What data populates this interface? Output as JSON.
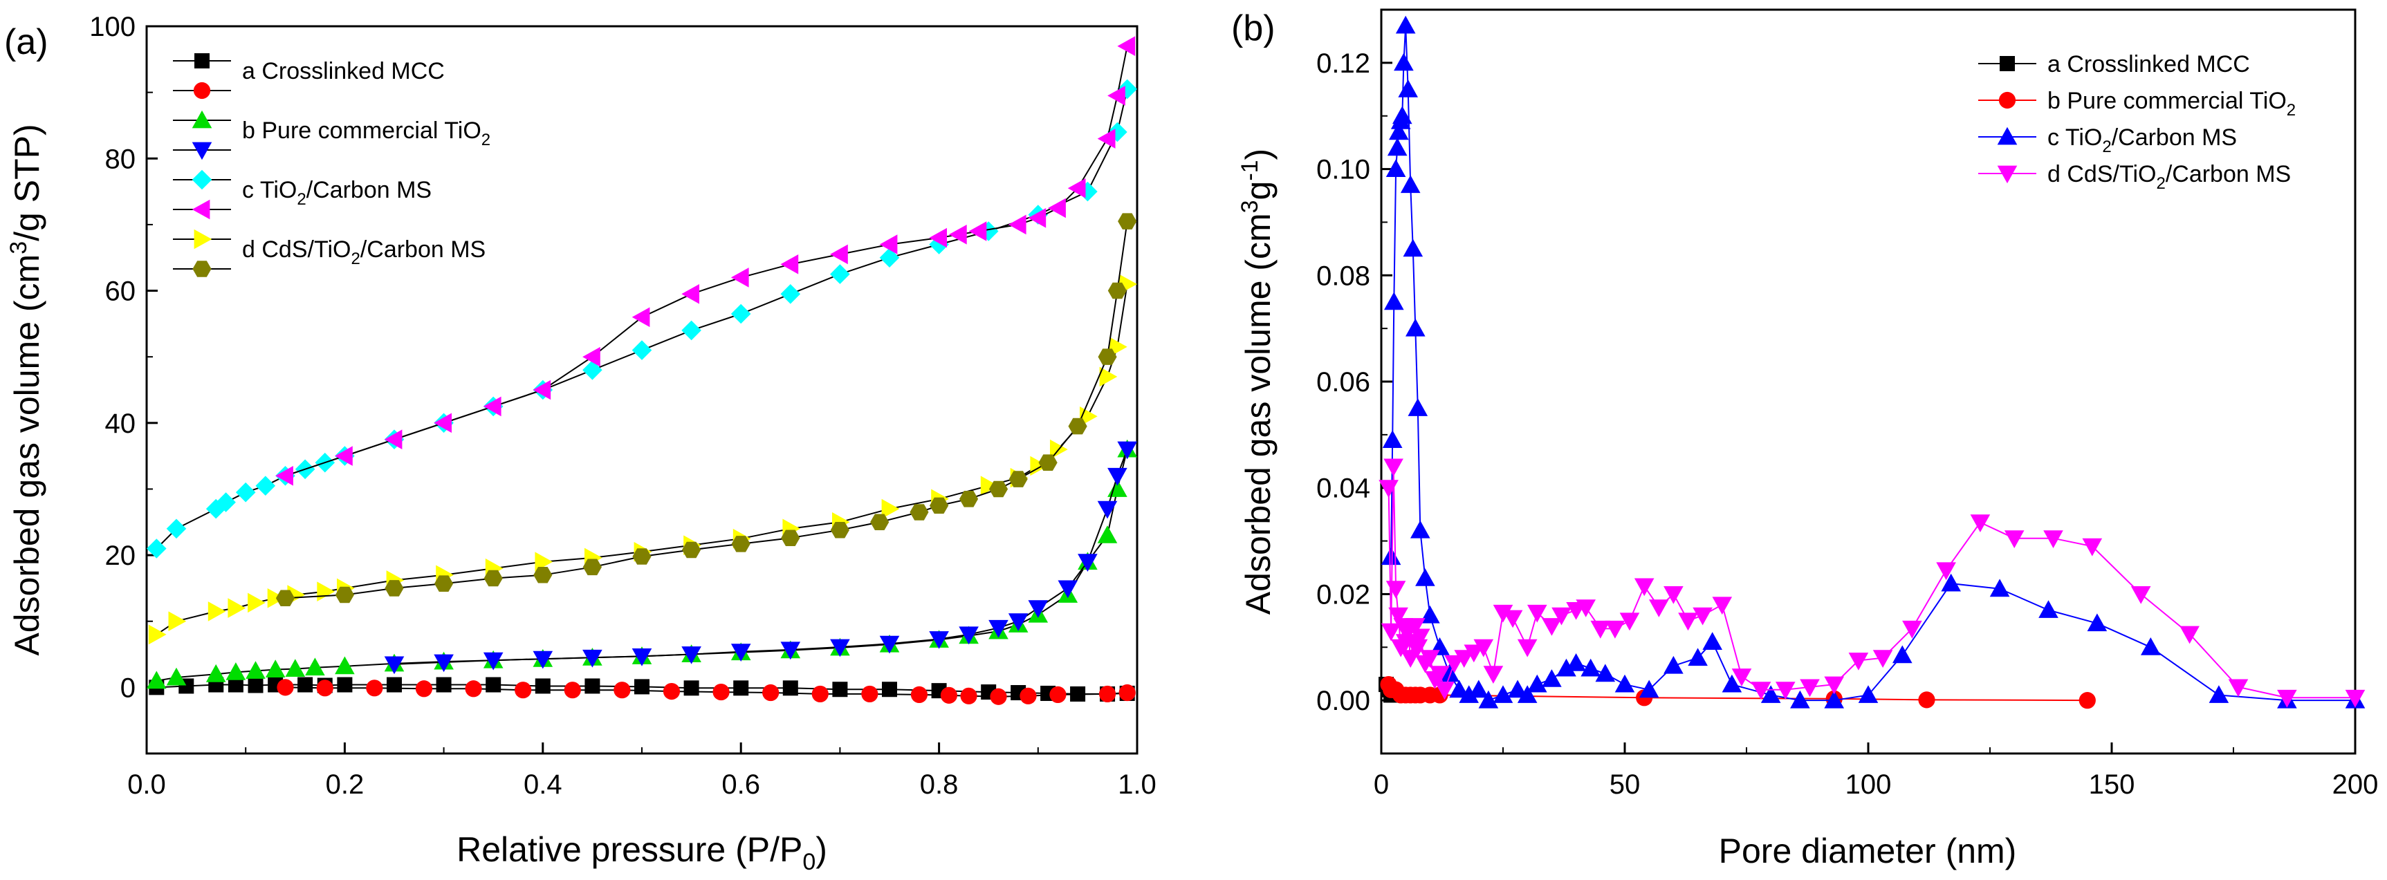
{
  "chart_data": [
    {
      "panel_label": "(a)",
      "type": "line",
      "xlabel": "Relative pressure (P/P",
      "xlabel_sub": "0",
      "xlabel_end": ")",
      "ylabel_pre": "Adsorbed gas volume (cm",
      "ylabel_sup": "3",
      "ylabel_end": "/g STP)",
      "xlim": [
        0,
        1.0
      ],
      "ylim": [
        -10,
        100
      ],
      "xticks": [
        "0.0",
        "0.2",
        "0.4",
        "0.6",
        "0.8",
        "1.0"
      ],
      "yticks": [
        "0",
        "20",
        "40",
        "60",
        "80",
        "100"
      ],
      "legend_position": "top-left",
      "legend": [
        {
          "text": "a Crosslinked MCC",
          "sub": "",
          "end": "",
          "marker": "square",
          "color": "#000000"
        },
        {
          "text": "",
          "sub": "",
          "end": "",
          "marker": "circle",
          "color": "#ff0000"
        },
        {
          "text": "b Pure commercial TiO",
          "sub": "2",
          "end": "",
          "marker": "triangle-up",
          "color": "#00dd00"
        },
        {
          "text": "",
          "sub": "",
          "end": "",
          "marker": "triangle-down",
          "color": "#0000ff"
        },
        {
          "text": "c TiO",
          "sub": "2",
          "end": "/Carbon MS",
          "marker": "diamond",
          "color": "#00ffff"
        },
        {
          "text": "",
          "sub": "",
          "end": "",
          "marker": "triangle-left",
          "color": "#ff00ff"
        },
        {
          "text": "d CdS/TiO",
          "sub": "2",
          "end": "/Carbon MS",
          "marker": "triangle-right",
          "color": "#ffff00"
        },
        {
          "text": "",
          "sub": "",
          "end": "",
          "marker": "hexagon",
          "color": "#808000"
        }
      ],
      "series": [
        {
          "marker": "square",
          "color": "#000000",
          "x": [
            0.01,
            0.04,
            0.07,
            0.09,
            0.11,
            0.13,
            0.16,
            0.18,
            0.2,
            0.25,
            0.3,
            0.35,
            0.4,
            0.45,
            0.5,
            0.55,
            0.6,
            0.65,
            0.7,
            0.75,
            0.8,
            0.85,
            0.88,
            0.91,
            0.94,
            0.97,
            0.99
          ],
          "y": [
            0,
            0.2,
            0.4,
            0.4,
            0.3,
            0.4,
            0.4,
            0.3,
            0.4,
            0.4,
            0.4,
            0.4,
            0.2,
            0.2,
            0.1,
            -0.1,
            -0.1,
            -0.1,
            -0.3,
            -0.3,
            -0.5,
            -0.7,
            -0.8,
            -0.9,
            -1.0,
            -1.0,
            -0.9
          ]
        },
        {
          "marker": "circle",
          "color": "#ff0000",
          "x": [
            0.14,
            0.18,
            0.23,
            0.28,
            0.33,
            0.38,
            0.43,
            0.48,
            0.53,
            0.58,
            0.63,
            0.68,
            0.73,
            0.78,
            0.81,
            0.83,
            0.86,
            0.89,
            0.92,
            0.97,
            0.99
          ],
          "y": [
            0,
            -0.1,
            -0.1,
            -0.2,
            -0.2,
            -0.4,
            -0.4,
            -0.4,
            -0.6,
            -0.7,
            -0.8,
            -1.0,
            -1.0,
            -1.1,
            -1.2,
            -1.3,
            -1.4,
            -1.3,
            -1.1,
            -1.0,
            -0.8
          ]
        },
        {
          "marker": "triangle-up",
          "color": "#00dd00",
          "x": [
            0.01,
            0.03,
            0.07,
            0.09,
            0.11,
            0.13,
            0.15,
            0.17,
            0.2,
            0.25,
            0.3,
            0.35,
            0.4,
            0.45,
            0.5,
            0.55,
            0.6,
            0.65,
            0.7,
            0.75,
            0.8,
            0.83,
            0.86,
            0.88,
            0.9,
            0.93,
            0.95,
            0.97,
            0.98,
            0.99
          ],
          "y": [
            1,
            1.5,
            2,
            2.3,
            2.5,
            2.7,
            2.8,
            3,
            3.2,
            3.6,
            3.9,
            4.1,
            4.3,
            4.5,
            4.7,
            5,
            5.3,
            5.6,
            6,
            6.5,
            7.2,
            7.8,
            8.5,
            9.5,
            11,
            14,
            19,
            23,
            30,
            36
          ]
        },
        {
          "marker": "triangle-down",
          "color": "#0000ff",
          "x": [
            0.25,
            0.3,
            0.35,
            0.4,
            0.45,
            0.5,
            0.55,
            0.6,
            0.65,
            0.7,
            0.75,
            0.8,
            0.83,
            0.86,
            0.88,
            0.9,
            0.93,
            0.95,
            0.97,
            0.98,
            0.99
          ],
          "y": [
            3.5,
            3.8,
            4.1,
            4.3,
            4.5,
            4.7,
            5,
            5.4,
            5.7,
            6.1,
            6.6,
            7.3,
            8,
            9,
            10,
            12,
            15,
            19,
            27,
            32,
            36
          ]
        },
        {
          "marker": "diamond",
          "color": "#00ffff",
          "x": [
            0.01,
            0.03,
            0.07,
            0.08,
            0.1,
            0.12,
            0.14,
            0.16,
            0.18,
            0.2,
            0.25,
            0.3,
            0.35,
            0.4,
            0.45,
            0.5,
            0.55,
            0.6,
            0.65,
            0.7,
            0.75,
            0.8,
            0.85,
            0.9,
            0.95,
            0.98,
            0.99
          ],
          "y": [
            21,
            24,
            27,
            28,
            29.5,
            30.5,
            32,
            33,
            34,
            35,
            37.5,
            40,
            42.5,
            45,
            48,
            51,
            54,
            56.5,
            59.5,
            62.5,
            65,
            67,
            69,
            71.5,
            75,
            84,
            90.5
          ]
        },
        {
          "marker": "triangle-left",
          "color": "#ff00ff",
          "x": [
            0.14,
            0.2,
            0.25,
            0.3,
            0.35,
            0.4,
            0.45,
            0.5,
            0.55,
            0.6,
            0.65,
            0.7,
            0.75,
            0.8,
            0.82,
            0.84,
            0.88,
            0.9,
            0.92,
            0.94,
            0.97,
            0.98,
            0.99
          ],
          "y": [
            32,
            35,
            37.5,
            40,
            42.5,
            45,
            50,
            56,
            59.5,
            62,
            64,
            65.5,
            67,
            68,
            68.5,
            69,
            70,
            71,
            72.5,
            75.5,
            83,
            89.5,
            97
          ]
        },
        {
          "marker": "triangle-right",
          "color": "#ffff00",
          "x": [
            0.01,
            0.03,
            0.07,
            0.09,
            0.11,
            0.13,
            0.15,
            0.18,
            0.2,
            0.25,
            0.3,
            0.35,
            0.4,
            0.45,
            0.5,
            0.55,
            0.6,
            0.65,
            0.7,
            0.75,
            0.8,
            0.85,
            0.88,
            0.9,
            0.92,
            0.95,
            0.97,
            0.98,
            0.99
          ],
          "y": [
            8,
            10,
            11.5,
            12,
            12.8,
            13.5,
            14,
            14.5,
            15,
            16.2,
            17,
            18,
            19,
            19.6,
            20.5,
            21.5,
            22.5,
            24,
            25,
            27,
            28.5,
            30.5,
            31.7,
            33.5,
            36,
            41,
            47,
            51.5,
            61
          ]
        },
        {
          "marker": "hexagon",
          "color": "#808000",
          "x": [
            0.14,
            0.2,
            0.25,
            0.3,
            0.35,
            0.4,
            0.45,
            0.5,
            0.55,
            0.6,
            0.65,
            0.7,
            0.74,
            0.78,
            0.8,
            0.83,
            0.86,
            0.88,
            0.91,
            0.94,
            0.97,
            0.98,
            0.99
          ],
          "y": [
            13.5,
            14,
            15,
            15.7,
            16.5,
            17,
            18.2,
            19.8,
            20.8,
            21.7,
            22.6,
            23.8,
            25,
            26.5,
            27.5,
            28.5,
            30,
            31.5,
            34,
            39.5,
            50,
            60,
            70.5
          ]
        }
      ]
    },
    {
      "panel_label": "(b)",
      "type": "line",
      "xlabel": "Pore diameter (nm)",
      "ylabel_pre": "Adsorbed gas volume (cm",
      "ylabel_sup": "3",
      "ylabel_mid": "g",
      "ylabel_sup2": "-1",
      "ylabel_end": ")",
      "xlim": [
        0,
        200
      ],
      "ylim": [
        -0.01,
        0.13
      ],
      "xticks": [
        "0",
        "50",
        "100",
        "150",
        "200"
      ],
      "yticks": [
        "0.00",
        "0.02",
        "0.04",
        "0.06",
        "0.08",
        "0.10",
        "0.12"
      ],
      "legend_position": "top-right",
      "legend": [
        {
          "text": "a Crosslinked MCC",
          "sub": "",
          "end": "",
          "marker": "square",
          "color": "#000000"
        },
        {
          "text": "b Pure commercial TiO",
          "sub": "2",
          "end": "",
          "marker": "circle",
          "color": "#ff0000"
        },
        {
          "text": "c TiO",
          "sub": "2",
          "end": "/Carbon MS",
          "marker": "triangle-up",
          "color": "#0000ff"
        },
        {
          "text": "d CdS/TiO",
          "sub": "2",
          "end": "/Carbon MS",
          "marker": "triangle-down",
          "color": "#ff00ff"
        }
      ],
      "series": [
        {
          "marker": "square",
          "color": "#000000",
          "line": "#000000",
          "x": [
            1,
            1.5,
            2,
            2.5,
            3
          ],
          "y": [
            0.003,
            0.002,
            0.001,
            0.001,
            0.001
          ]
        },
        {
          "marker": "circle",
          "color": "#ff0000",
          "line": "#ff0000",
          "x": [
            1.5,
            2,
            2.5,
            3,
            4,
            5,
            6,
            7,
            8,
            10,
            12,
            54,
            93,
            112,
            145
          ],
          "y": [
            0.003,
            0.002,
            0.002,
            0.002,
            0.001,
            0.001,
            0.001,
            0.001,
            0.001,
            0.001,
            0.001,
            0.0005,
            0.0003,
            0.0001,
            0
          ]
        },
        {
          "marker": "triangle-up",
          "color": "#0000ff",
          "line": "#0000ff",
          "x": [
            2,
            2.3,
            2.6,
            3,
            3.3,
            3.6,
            4,
            4.3,
            4.6,
            5,
            5.5,
            6,
            6.5,
            7,
            7.5,
            8,
            9,
            10,
            12,
            14,
            16,
            18,
            20,
            22,
            25,
            28,
            30,
            32,
            35,
            38,
            40,
            43,
            46,
            50,
            55,
            60,
            65,
            68,
            72,
            80,
            86,
            93,
            100,
            107,
            117,
            127,
            137,
            147,
            158,
            172,
            186,
            200
          ],
          "y": [
            0.027,
            0.049,
            0.075,
            0.1,
            0.104,
            0.107,
            0.109,
            0.11,
            0.12,
            0.127,
            0.115,
            0.097,
            0.085,
            0.07,
            0.055,
            0.032,
            0.023,
            0.016,
            0.01,
            0.005,
            0.002,
            0.001,
            0.002,
            0.0,
            0.001,
            0.002,
            0.001,
            0.003,
            0.004,
            0.006,
            0.007,
            0.006,
            0.005,
            0.003,
            0.002,
            0.0065,
            0.008,
            0.011,
            0.003,
            0.001,
            0,
            0,
            0.001,
            0.0085,
            0.022,
            0.021,
            0.017,
            0.0145,
            0.01,
            0.001,
            0,
            0
          ]
        },
        {
          "marker": "triangle-down",
          "color": "#ff00ff",
          "line": "#ff00ff",
          "x": [
            1.5,
            2,
            2.5,
            3,
            3.5,
            4,
            4.5,
            5,
            5.5,
            6,
            6.5,
            7,
            7.5,
            8,
            9,
            10,
            11,
            12,
            13,
            15,
            17,
            19,
            21,
            23,
            25,
            27,
            30,
            32,
            35,
            37,
            40,
            42,
            45,
            48,
            51,
            54,
            57,
            60,
            63,
            66,
            70,
            74,
            78,
            83,
            88,
            93,
            98,
            103,
            109,
            116,
            123,
            130,
            138,
            146,
            156,
            166,
            176,
            186,
            200
          ],
          "y": [
            0.04,
            0.013,
            0.044,
            0.021,
            0.016,
            0.01,
            0.014,
            0.011,
            0.013,
            0.008,
            0.011,
            0.014,
            0.01,
            0.012,
            0.007,
            0.008,
            0.004,
            0.005,
            0.002,
            0.007,
            0.008,
            0.009,
            0.01,
            0.005,
            0.0165,
            0.0155,
            0.01,
            0.0165,
            0.014,
            0.016,
            0.017,
            0.0175,
            0.0135,
            0.0135,
            0.015,
            0.0215,
            0.0175,
            0.02,
            0.015,
            0.016,
            0.018,
            0.0045,
            0.002,
            0.002,
            0.0025,
            0.003,
            0.0075,
            0.008,
            0.0135,
            0.0245,
            0.0335,
            0.0305,
            0.0305,
            0.029,
            0.02,
            0.0125,
            0.0025,
            0.0005,
            0.0005
          ]
        }
      ]
    }
  ]
}
